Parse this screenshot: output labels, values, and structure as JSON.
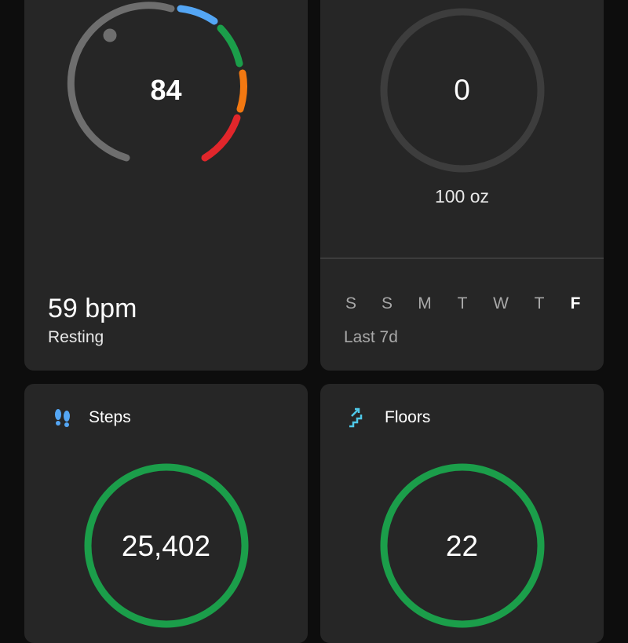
{
  "heart_rate": {
    "current": "84",
    "resting_value": "59 bpm",
    "resting_label": "Resting",
    "zone_colors": [
      "#54a6f4",
      "#1b9e4a",
      "#f27811",
      "#e1262b"
    ],
    "track_color": "#6e6e6e"
  },
  "hydration": {
    "current": "0",
    "goal": "100 oz",
    "progress": 0,
    "days": [
      "S",
      "S",
      "M",
      "T",
      "W",
      "T",
      "F"
    ],
    "active_day_index": 6,
    "period_label": "Last 7d",
    "track_color": "#3d3d3d"
  },
  "steps": {
    "label": "Steps",
    "value": "25,402",
    "icon": "footprints-icon",
    "icon_color": "#54a6f4",
    "ring_color": "#1b9e4a",
    "progress": 1.0
  },
  "floors": {
    "label": "Floors",
    "value": "22",
    "icon": "stairs-icon",
    "icon_color": "#4fc8e8",
    "ring_color": "#1b9e4a",
    "progress": 1.0
  }
}
